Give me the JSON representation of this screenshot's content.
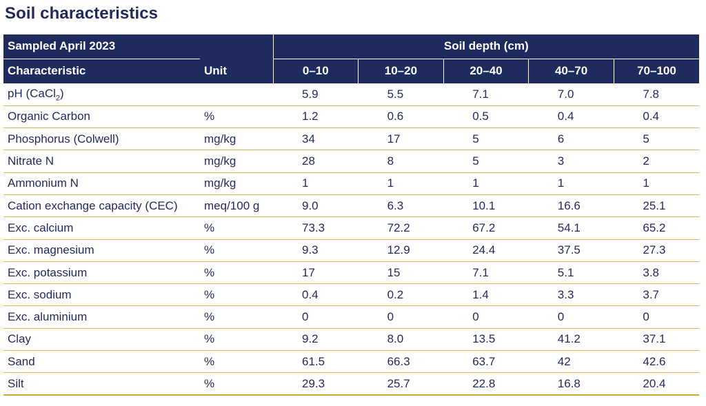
{
  "title": "Soil characteristics",
  "header": {
    "sampled": "Sampled April 2023",
    "soil_depth": "Soil depth (cm)",
    "characteristic": "Characteristic",
    "unit": "Unit",
    "depths": [
      "0–10",
      "10–20",
      "20–40",
      "40–70",
      "70–100"
    ]
  },
  "ph_label": {
    "main": "pH (CaCl",
    "sub": "2",
    "close": ")"
  },
  "rows": [
    {
      "name": "pH (CaCl2)",
      "unit": "",
      "values": [
        "5.9",
        "5.5",
        "7.1",
        "7.0",
        "7.8"
      ]
    },
    {
      "name": "Organic Carbon",
      "unit": "%",
      "values": [
        "1.2",
        "0.6",
        "0.5",
        "0.4",
        "0.4"
      ]
    },
    {
      "name": "Phosphorus (Colwell)",
      "unit": "mg/kg",
      "values": [
        "34",
        "17",
        "5",
        "6",
        "5"
      ]
    },
    {
      "name": "Nitrate N",
      "unit": "mg/kg",
      "values": [
        "28",
        "8",
        "5",
        "3",
        "2"
      ]
    },
    {
      "name": "Ammonium N",
      "unit": "mg/kg",
      "values": [
        "1",
        "1",
        "1",
        "1",
        "1"
      ]
    },
    {
      "name": "Cation exchange capacity (CEC)",
      "unit": "meq/100 g",
      "values": [
        "9.0",
        "6.3",
        "10.1",
        "16.6",
        "25.1"
      ]
    },
    {
      "name": "Exc. calcium",
      "unit": "%",
      "values": [
        "73.3",
        "72.2",
        "67.2",
        "54.1",
        "65.2"
      ]
    },
    {
      "name": "Exc. magnesium",
      "unit": "%",
      "values": [
        "9.3",
        "12.9",
        "24.4",
        "37.5",
        "27.3"
      ]
    },
    {
      "name": "Exc. potassium",
      "unit": "%",
      "values": [
        "17",
        "15",
        "7.1",
        "5.1",
        "3.8"
      ]
    },
    {
      "name": "Exc. sodium",
      "unit": "%",
      "values": [
        "0.4",
        "0.2",
        "1.4",
        "3.3",
        "3.7"
      ]
    },
    {
      "name": "Exc. aluminium",
      "unit": "%",
      "values": [
        "0",
        "0",
        "0",
        "0",
        "0"
      ]
    },
    {
      "name": "Clay",
      "unit": "%",
      "values": [
        "9.2",
        "8.0",
        "13.5",
        "41.2",
        "37.1"
      ]
    },
    {
      "name": "Sand",
      "unit": "%",
      "values": [
        "61.5",
        "66.3",
        "63.7",
        "42",
        "42.6"
      ]
    },
    {
      "name": "Silt",
      "unit": "%",
      "values": [
        "29.3",
        "25.7",
        "22.8",
        "16.8",
        "20.4"
      ]
    }
  ],
  "colors": {
    "header_bg": "#1f2a5e",
    "text": "#1f2a5a",
    "rule": "#e3b64a"
  }
}
